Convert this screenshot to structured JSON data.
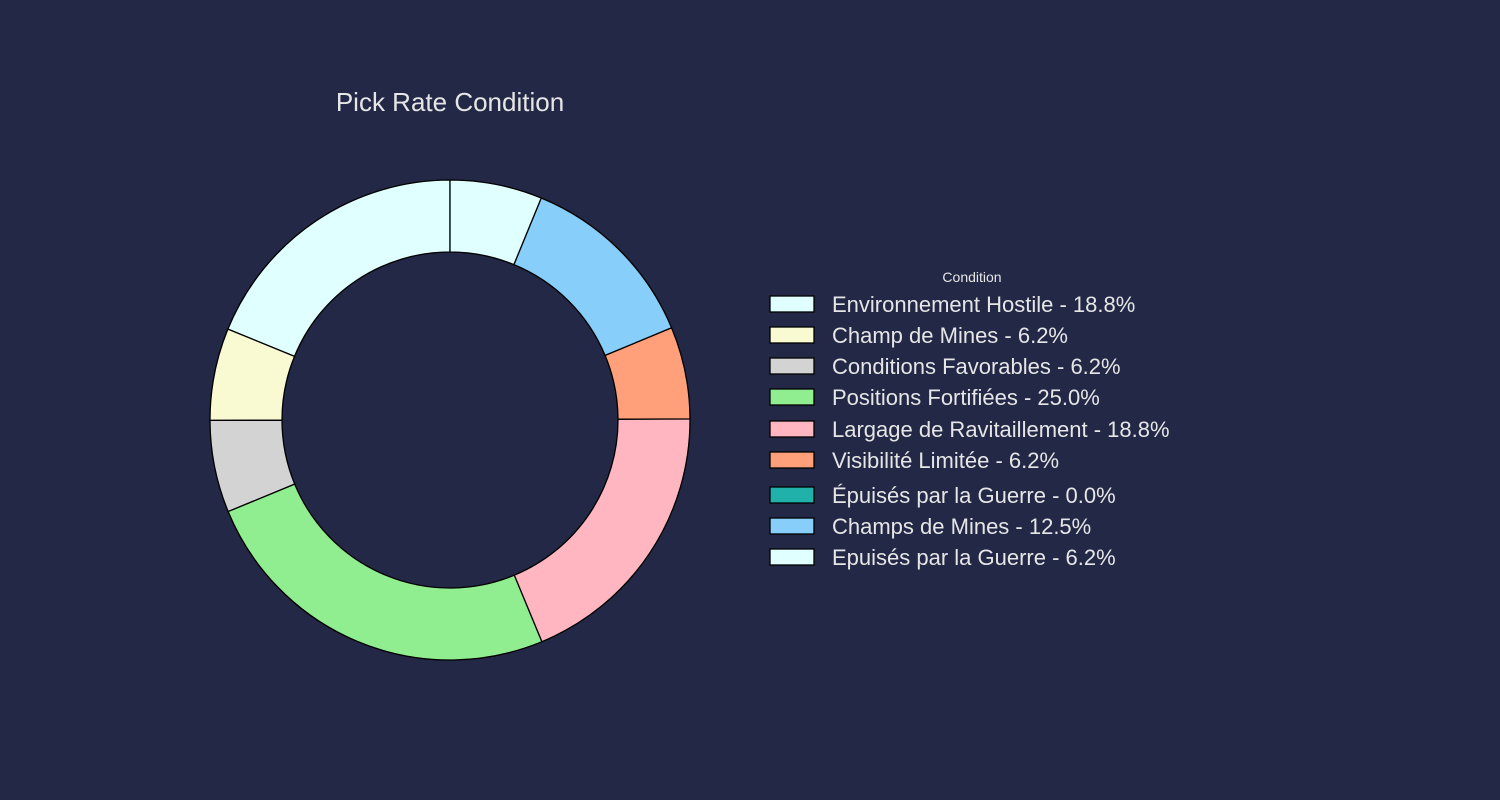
{
  "chart_data": {
    "type": "pie",
    "title": "Pick Rate Condition",
    "legend_title": "Condition",
    "legend_position": "right",
    "donut": true,
    "slices": [
      {
        "label": "Environnement Hostile - 18.8%",
        "value": 18.8,
        "color": "#E0FFFF"
      },
      {
        "label": "Champ de Mines - 6.2%",
        "value": 6.2,
        "color": "#FAFAD2"
      },
      {
        "label": "Conditions Favorables - 6.2%",
        "value": 6.2,
        "color": "#D3D3D3"
      },
      {
        "label": "Positions Fortifiées - 25.0%",
        "value": 25.0,
        "color": "#90EE90"
      },
      {
        "label": "Largage de Ravitaillement - 18.8%",
        "value": 18.8,
        "color": "#FFB6C1"
      },
      {
        "label": "Visibilité Limitée - 6.2%",
        "value": 6.2,
        "color": "#FFA07A"
      },
      {
        "label": "Épuisés par la Guerre - 0.0%",
        "value": 0.0,
        "color": "#20B2AA"
      },
      {
        "label": "Champs de Mines - 12.5%",
        "value": 12.5,
        "color": "#87CEFA"
      },
      {
        "label": "Epuisés par la Guerre - 6.2%",
        "value": 6.2,
        "color": "#E0FFFF"
      }
    ],
    "edge_color": "#000000",
    "background": "#222845"
  }
}
